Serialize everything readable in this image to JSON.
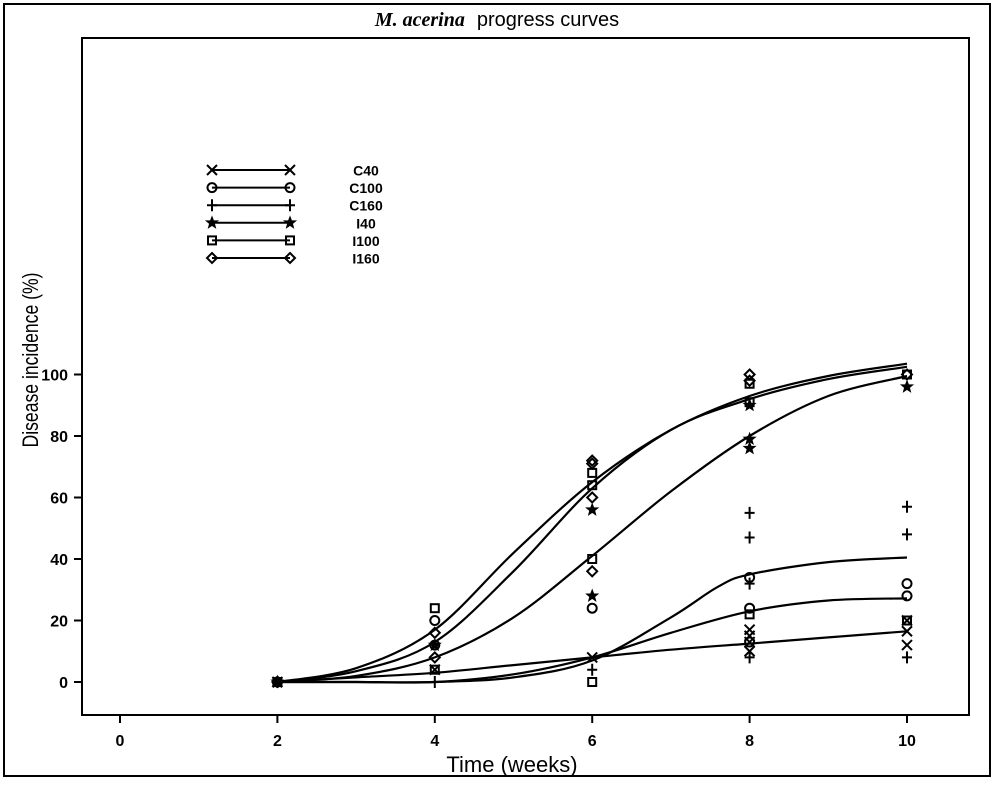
{
  "chart_data": {
    "type": "scatter",
    "title_italic": "M. acerina",
    "title_rest": "progress curves",
    "xlabel": "Time (weeks)",
    "ylabel": "Disease incidence (%)",
    "xlim": [
      -1,
      10.4
    ],
    "ylim": [
      -5,
      105
    ],
    "x_ticks": [
      0,
      2,
      4,
      6,
      8,
      10
    ],
    "y_ticks": [
      0,
      20,
      40,
      60,
      80,
      100
    ],
    "grid": false,
    "legend_position": "upper-left",
    "series": [
      {
        "name": "C40",
        "marker": "x",
        "points": [
          [
            2,
            0
          ],
          [
            4,
            4
          ],
          [
            6,
            8
          ],
          [
            8,
            10
          ],
          [
            8,
            13
          ],
          [
            8,
            15
          ],
          [
            8,
            17
          ],
          [
            10,
            12
          ],
          [
            10,
            16.5
          ],
          [
            10,
            20
          ]
        ]
      },
      {
        "name": "C100",
        "marker": "circle",
        "points": [
          [
            2,
            0
          ],
          [
            4,
            20
          ],
          [
            4,
            12
          ],
          [
            6,
            24
          ],
          [
            8,
            24
          ],
          [
            8,
            13
          ],
          [
            8,
            34
          ],
          [
            10,
            28
          ],
          [
            10,
            32
          ]
        ]
      },
      {
        "name": "C160",
        "marker": "plus",
        "points": [
          [
            2,
            0
          ],
          [
            4,
            0
          ],
          [
            6,
            4
          ],
          [
            8,
            8
          ],
          [
            8,
            32
          ],
          [
            8,
            47
          ],
          [
            8,
            55
          ],
          [
            10,
            8
          ],
          [
            10,
            48
          ],
          [
            10,
            57
          ]
        ]
      },
      {
        "name": "I40",
        "marker": "star",
        "points": [
          [
            2,
            0
          ],
          [
            4,
            12
          ],
          [
            6,
            28
          ],
          [
            6,
            56
          ],
          [
            8,
            76
          ],
          [
            8,
            79
          ],
          [
            8,
            90
          ],
          [
            10,
            96
          ]
        ]
      },
      {
        "name": "I100",
        "marker": "square",
        "points": [
          [
            2,
            0
          ],
          [
            4,
            24
          ],
          [
            4,
            4
          ],
          [
            6,
            64
          ],
          [
            6,
            68
          ],
          [
            6,
            40
          ],
          [
            6,
            0
          ],
          [
            8,
            97
          ],
          [
            8,
            91
          ],
          [
            8,
            22
          ],
          [
            10,
            100
          ],
          [
            10,
            20
          ]
        ]
      },
      {
        "name": "I160",
        "marker": "diamond",
        "points": [
          [
            2,
            0
          ],
          [
            4,
            16
          ],
          [
            4,
            8
          ],
          [
            6,
            72
          ],
          [
            6,
            71
          ],
          [
            6,
            60
          ],
          [
            6,
            36
          ],
          [
            8,
            98
          ],
          [
            8,
            100
          ],
          [
            10,
            100
          ]
        ]
      }
    ],
    "fitted_curves": [
      {
        "points": [
          [
            2,
            0
          ],
          [
            3,
            4.5
          ],
          [
            4,
            17
          ],
          [
            5,
            42
          ],
          [
            6,
            65
          ],
          [
            7,
            82
          ],
          [
            8,
            93
          ],
          [
            9,
            99.5
          ],
          [
            10,
            103.5
          ]
        ]
      },
      {
        "points": [
          [
            2,
            0
          ],
          [
            3,
            3.5
          ],
          [
            4,
            13
          ],
          [
            5,
            36
          ],
          [
            6,
            63
          ],
          [
            7,
            82
          ],
          [
            8,
            92
          ],
          [
            9,
            98.5
          ],
          [
            10,
            102.5
          ]
        ]
      },
      {
        "points": [
          [
            2,
            0
          ],
          [
            3,
            2
          ],
          [
            4,
            8
          ],
          [
            5,
            21
          ],
          [
            6,
            41
          ],
          [
            7,
            62
          ],
          [
            8,
            80
          ],
          [
            9,
            93
          ],
          [
            10,
            99.5
          ]
        ]
      },
      {
        "points": [
          [
            2,
            0
          ],
          [
            3,
            0
          ],
          [
            4,
            0
          ],
          [
            5,
            1.5
          ],
          [
            6,
            7
          ],
          [
            7,
            21
          ],
          [
            7.6,
            31
          ],
          [
            8,
            35
          ],
          [
            9,
            39
          ],
          [
            10,
            40.5
          ]
        ]
      },
      {
        "points": [
          [
            2,
            0
          ],
          [
            3,
            0
          ],
          [
            4,
            0
          ],
          [
            5,
            2.5
          ],
          [
            6,
            8
          ],
          [
            7,
            16
          ],
          [
            8,
            23
          ],
          [
            9,
            26.5
          ],
          [
            10,
            27.2
          ]
        ]
      },
      {
        "points": [
          [
            2,
            0
          ],
          [
            3,
            1.5
          ],
          [
            4,
            3
          ],
          [
            5,
            5.5
          ],
          [
            6,
            8
          ],
          [
            7,
            10.5
          ],
          [
            8,
            12.5
          ],
          [
            9,
            14.5
          ],
          [
            10,
            16.5
          ]
        ]
      }
    ]
  }
}
